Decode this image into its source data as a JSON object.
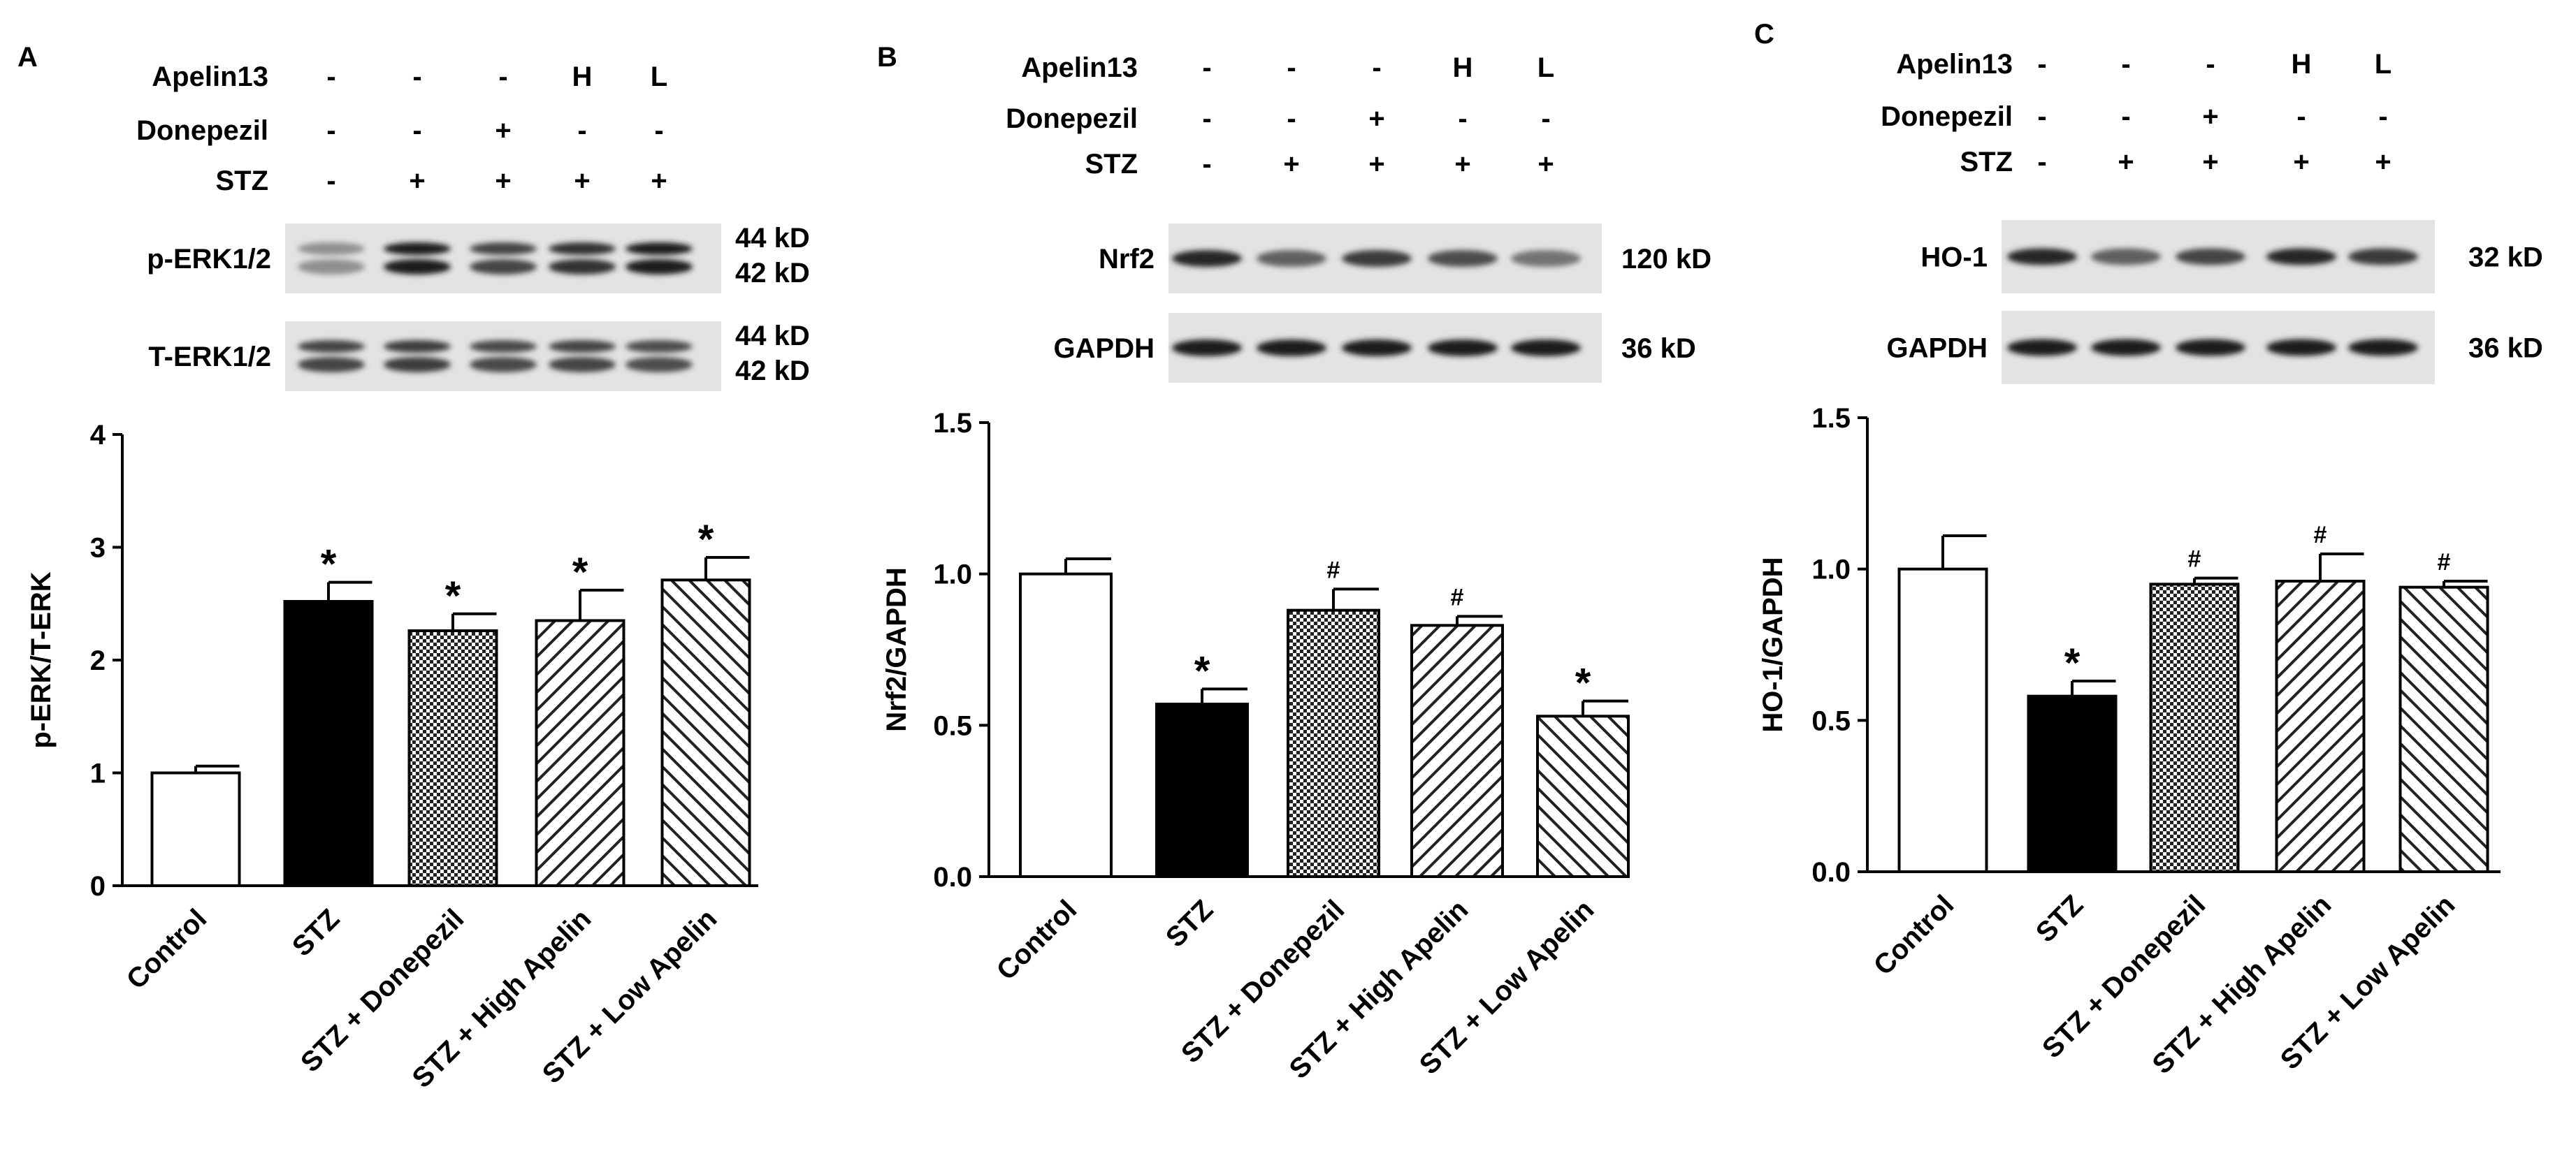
{
  "panels": [
    {
      "letter": "A",
      "treatments": [
        {
          "label": "Apelin13",
          "marks": [
            "-",
            "-",
            "-",
            "H",
            "L"
          ]
        },
        {
          "label": "Donepezil",
          "marks": [
            "-",
            "-",
            "+",
            "-",
            "-"
          ]
        },
        {
          "label": "STZ",
          "marks": [
            "-",
            "+",
            "+",
            "+",
            "+"
          ]
        }
      ],
      "blots": [
        {
          "protein": "p-ERK1/2",
          "kd": [
            "44 kD",
            "42 kD"
          ],
          "double": true,
          "intensity": [
            0.35,
            0.95,
            0.75,
            0.85,
            0.95
          ]
        },
        {
          "protein": "T-ERK1/2",
          "kd": [
            "44 kD",
            "42 kD"
          ],
          "double": true,
          "intensity": [
            0.75,
            0.78,
            0.72,
            0.75,
            0.7
          ]
        }
      ]
    },
    {
      "letter": "B",
      "treatments": [
        {
          "label": "Apelin13",
          "marks": [
            "-",
            "-",
            "-",
            "H",
            "L"
          ]
        },
        {
          "label": "Donepezil",
          "marks": [
            "-",
            "-",
            "+",
            "-",
            "-"
          ]
        },
        {
          "label": "STZ",
          "marks": [
            "-",
            "+",
            "+",
            "+",
            "+"
          ]
        }
      ],
      "blots": [
        {
          "protein": "Nrf2",
          "kd": [
            "120 kD"
          ],
          "double": false,
          "intensity": [
            0.9,
            0.6,
            0.8,
            0.7,
            0.5
          ]
        },
        {
          "protein": "GAPDH",
          "kd": [
            "36 kD"
          ],
          "double": false,
          "intensity": [
            0.95,
            0.95,
            0.95,
            0.95,
            0.95
          ]
        }
      ]
    },
    {
      "letter": "C",
      "treatments": [
        {
          "label": "Apelin13",
          "marks": [
            "-",
            "-",
            "-",
            "H",
            "L"
          ]
        },
        {
          "label": "Donepezil",
          "marks": [
            "-",
            "-",
            "+",
            "-",
            "-"
          ]
        },
        {
          "label": "STZ",
          "marks": [
            "-",
            "+",
            "+",
            "+",
            "+"
          ]
        }
      ],
      "blots": [
        {
          "protein": "HO-1",
          "kd": [
            "32 kD"
          ],
          "double": false,
          "intensity": [
            0.9,
            0.6,
            0.75,
            0.9,
            0.8
          ]
        },
        {
          "protein": "GAPDH",
          "kd": [
            "36 kD"
          ],
          "double": false,
          "intensity": [
            0.95,
            0.95,
            0.95,
            0.95,
            0.95
          ]
        }
      ]
    }
  ],
  "chart_data": [
    {
      "type": "bar",
      "panel": "A",
      "categories": [
        "Control",
        "STZ",
        "STZ + Donepezil",
        "STZ + High Apelin",
        "STZ + Low Apelin"
      ],
      "values": [
        1.0,
        2.52,
        2.26,
        2.35,
        2.71
      ],
      "errors": [
        0.06,
        0.17,
        0.15,
        0.27,
        0.2
      ],
      "significance": [
        "",
        "*",
        "*",
        "*",
        "*"
      ],
      "fills": [
        "white",
        "solid",
        "crosshatch",
        "diagonal-right",
        "diagonal-left"
      ],
      "ylabel": "p-ERK/T-ERK",
      "ylim": [
        0,
        4
      ],
      "yticks": [
        "0",
        "1",
        "2",
        "3",
        "4"
      ],
      "grid": false
    },
    {
      "type": "bar",
      "panel": "B",
      "categories": [
        "Control",
        "STZ",
        "STZ + Donepezil",
        "STZ + High Apelin",
        "STZ + Low Apelin"
      ],
      "values": [
        1.0,
        0.57,
        0.88,
        0.83,
        0.53
      ],
      "errors": [
        0.05,
        0.05,
        0.07,
        0.03,
        0.05
      ],
      "significance": [
        "",
        "*",
        "#",
        "#",
        "*"
      ],
      "fills": [
        "white",
        "solid",
        "crosshatch",
        "diagonal-right",
        "diagonal-left"
      ],
      "ylabel": "Nrf2/GAPDH",
      "ylim": [
        0,
        1.5
      ],
      "yticks": [
        "0.0",
        "0.5",
        "1.0",
        "1.5"
      ],
      "grid": false
    },
    {
      "type": "bar",
      "panel": "C",
      "categories": [
        "Control",
        "STZ",
        "STZ + Donepezil",
        "STZ + High Apelin",
        "STZ + Low Apelin"
      ],
      "values": [
        1.0,
        0.58,
        0.95,
        0.96,
        0.94
      ],
      "errors": [
        0.11,
        0.05,
        0.02,
        0.09,
        0.02
      ],
      "significance": [
        "",
        "*",
        "#",
        "#",
        "#"
      ],
      "fills": [
        "white",
        "solid",
        "crosshatch",
        "diagonal-right",
        "diagonal-left"
      ],
      "ylabel": "HO-1/GAPDH",
      "ylim": [
        0,
        1.5
      ],
      "yticks": [
        "0.0",
        "0.5",
        "1.0",
        "1.5"
      ],
      "grid": false
    }
  ]
}
